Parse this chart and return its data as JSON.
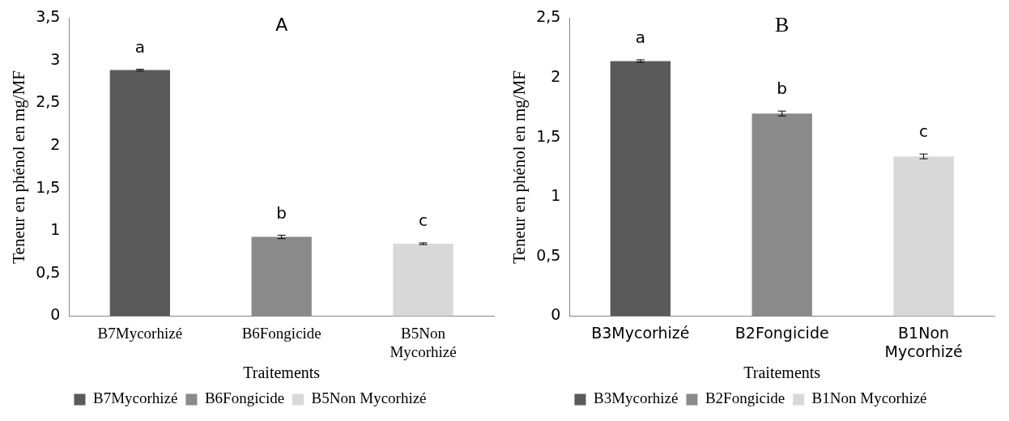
{
  "chart_data": [
    {
      "type": "bar",
      "title": "A",
      "xlabel": "Traitements",
      "ylabel": "Teneur en phénol en mg/MF",
      "categories": [
        "B7Mycorhizé",
        "B6Fongicide",
        "B5Non Mycorhizé"
      ],
      "series": [
        {
          "name": "B7Mycorhizé",
          "color": "#5a5a5a",
          "values": [
            2.89,
            null,
            null
          ],
          "errors": [
            0.01,
            null,
            null
          ]
        },
        {
          "name": "B6Fongicide",
          "color": "#8a8a8a",
          "values": [
            null,
            0.93,
            null
          ],
          "errors": [
            null,
            0.02,
            null
          ]
        },
        {
          "name": "B5Non Mycorhizé",
          "color": "#d8d8d8",
          "values": [
            null,
            null,
            0.85
          ],
          "errors": [
            null,
            null,
            0.01
          ]
        }
      ],
      "ylim": [
        0,
        3.5
      ],
      "yticks": [
        0,
        {
          "value": 0.5,
          "label": "0,5"
        },
        1,
        {
          "value": 1.5,
          "label": "1,5"
        },
        2,
        {
          "value": 2.5,
          "label": "2,5"
        },
        3,
        {
          "value": 3.5,
          "label": "3,5"
        }
      ],
      "annotations": [
        "a",
        "b",
        "c"
      ],
      "grid": false,
      "legend": "bottom"
    },
    {
      "type": "bar",
      "title": "B",
      "xlabel": "Traitements",
      "ylabel": "Teneur en phénol en mg/MF",
      "categories": [
        "B3Mycorhizé",
        "B2Fongicide",
        "B1Non Mycorhizé"
      ],
      "series": [
        {
          "name": "B3Mycorhizé",
          "color": "#5a5a5a",
          "values": [
            2.14,
            null,
            null
          ],
          "errors": [
            0.01,
            null,
            null
          ]
        },
        {
          "name": "B2Fongicide",
          "color": "#8a8a8a",
          "values": [
            null,
            1.7,
            null
          ],
          "errors": [
            null,
            0.02,
            null
          ]
        },
        {
          "name": "B1Non Mycorhizé",
          "color": "#d8d8d8",
          "values": [
            null,
            null,
            1.34
          ],
          "errors": [
            null,
            null,
            0.02
          ]
        }
      ],
      "ylim": [
        0,
        2.5
      ],
      "yticks": [
        0,
        {
          "value": 0.5,
          "label": "0,5"
        },
        1,
        {
          "value": 1.5,
          "label": "1,5"
        },
        2,
        {
          "value": 2.5,
          "label": "2,5"
        }
      ],
      "annotations": [
        "a",
        "b",
        "c"
      ],
      "grid": false,
      "legend": "bottom"
    }
  ]
}
